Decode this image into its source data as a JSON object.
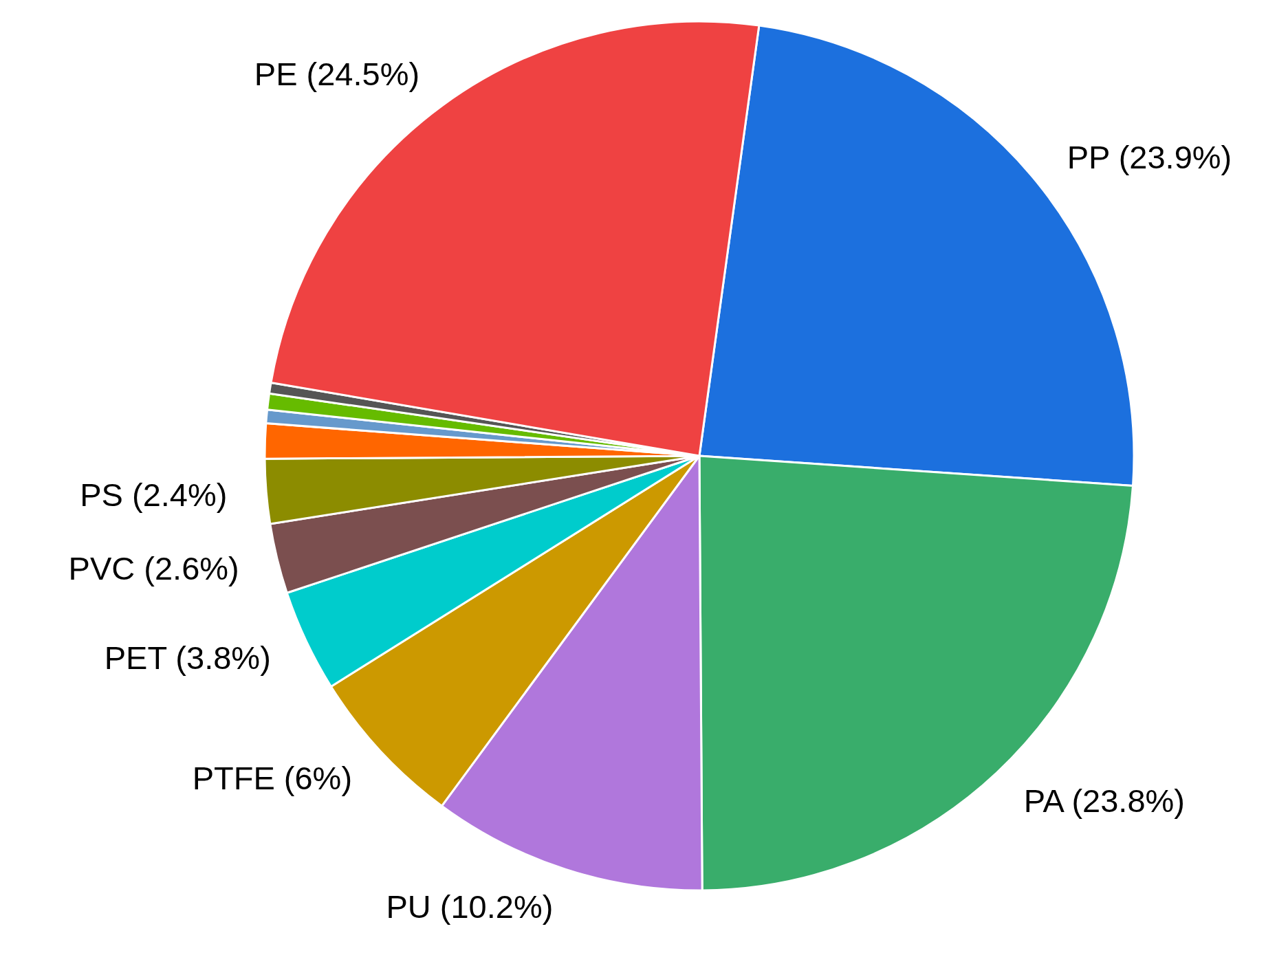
{
  "chart_data": {
    "type": "pie",
    "categories": [
      "PP (23.9%)",
      "PA (23.8%)",
      "PU (10.2%)",
      "PTFE (6%)",
      "PET (3.8%)",
      "PVC (2.6%)",
      "PS (2.4%)",
      null,
      null,
      null,
      null,
      "PE (24.5%)"
    ],
    "values": [
      23.9,
      23.8,
      10.2,
      6,
      3.8,
      2.6,
      2.4,
      1.3,
      0.5,
      0.6,
      0.4,
      24.5
    ],
    "colors": [
      "#1c70de",
      "#39ad6b",
      "#b077dc",
      "#cc9900",
      "#00cccc",
      "#7b4f4f",
      "#8c8c00",
      "#ff6600",
      "#6699cc",
      "#66bb00",
      "#555555",
      "#ef4242"
    ]
  }
}
